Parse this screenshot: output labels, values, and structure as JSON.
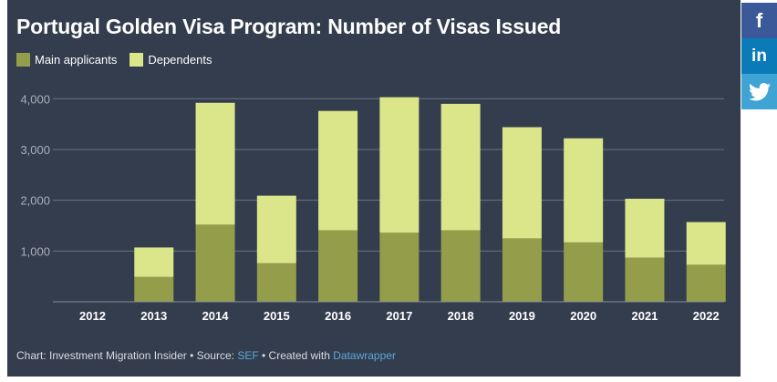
{
  "social": {
    "facebook": {
      "icon": "facebook-icon",
      "label": "f",
      "color": "#3b5998"
    },
    "linkedin": {
      "icon": "linkedin-icon",
      "label": "in",
      "color": "#0b7bb8"
    },
    "twitter": {
      "icon": "twitter-icon",
      "color": "#3fa3d3"
    }
  },
  "footer": {
    "prefix": "Chart: Investment Migration Insider • Source: ",
    "source_link": "SEF",
    "middle": " • Created with ",
    "tool_link": "Datawrapper"
  },
  "chart_data": {
    "type": "bar",
    "stacked": true,
    "title": "Portugal Golden Visa Program: Number of Visas Issued",
    "categories": [
      "2012",
      "2013",
      "2014",
      "2015",
      "2016",
      "2017",
      "2018",
      "2019",
      "2020",
      "2021",
      "2022"
    ],
    "series": [
      {
        "name": "Main applicants",
        "color": "#949e4a",
        "values": [
          0,
          490,
          1520,
          760,
          1410,
          1360,
          1410,
          1250,
          1170,
          870,
          730
        ]
      },
      {
        "name": "Dependents",
        "color": "#dbe68b",
        "values": [
          0,
          580,
          2400,
          1330,
          2350,
          2670,
          2490,
          2190,
          2050,
          1160,
          840
        ]
      }
    ],
    "ylim": [
      0,
      4000
    ],
    "yticks": [
      1000,
      2000,
      3000,
      4000
    ],
    "ytick_labels": [
      "1,000",
      "2,000",
      "3,000",
      "4,000"
    ],
    "grid": true,
    "legend": "top-left"
  }
}
